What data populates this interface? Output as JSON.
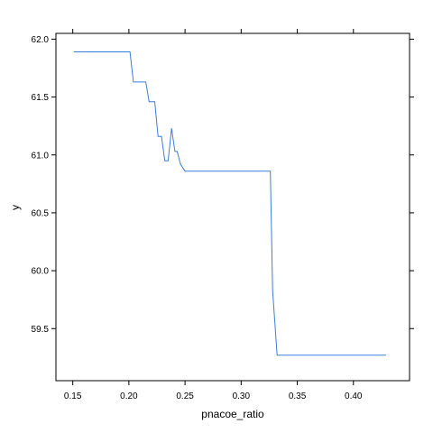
{
  "chart_data": {
    "type": "line",
    "xlabel": "pnacoe_ratio",
    "ylabel": "y",
    "xlim": [
      0.135,
      0.45
    ],
    "ylim": [
      59.05,
      62.05
    ],
    "x_ticks": [
      0.15,
      0.2,
      0.25,
      0.3,
      0.35,
      0.4
    ],
    "x_tick_labels": [
      "0.15",
      "0.20",
      "0.25",
      "0.30",
      "0.35",
      "0.40"
    ],
    "y_ticks": [
      59.5,
      60.0,
      60.5,
      61.0,
      61.5,
      62.0
    ],
    "y_tick_labels": [
      "59.5",
      "60.0",
      "60.5",
      "61.0",
      "61.5",
      "62.0"
    ],
    "grid": false,
    "line_color": "#3a7fe0",
    "series": [
      {
        "x": [
          0.151,
          0.201,
          0.204,
          0.215,
          0.218,
          0.223,
          0.226,
          0.229,
          0.232,
          0.235,
          0.238,
          0.241,
          0.243,
          0.246,
          0.25,
          0.326,
          0.328,
          0.332,
          0.429
        ],
        "y": [
          61.89,
          61.89,
          61.63,
          61.63,
          61.46,
          61.46,
          61.16,
          61.16,
          60.95,
          60.95,
          61.23,
          61.03,
          61.03,
          60.92,
          60.86,
          60.86,
          59.83,
          59.27,
          59.27
        ]
      }
    ]
  }
}
